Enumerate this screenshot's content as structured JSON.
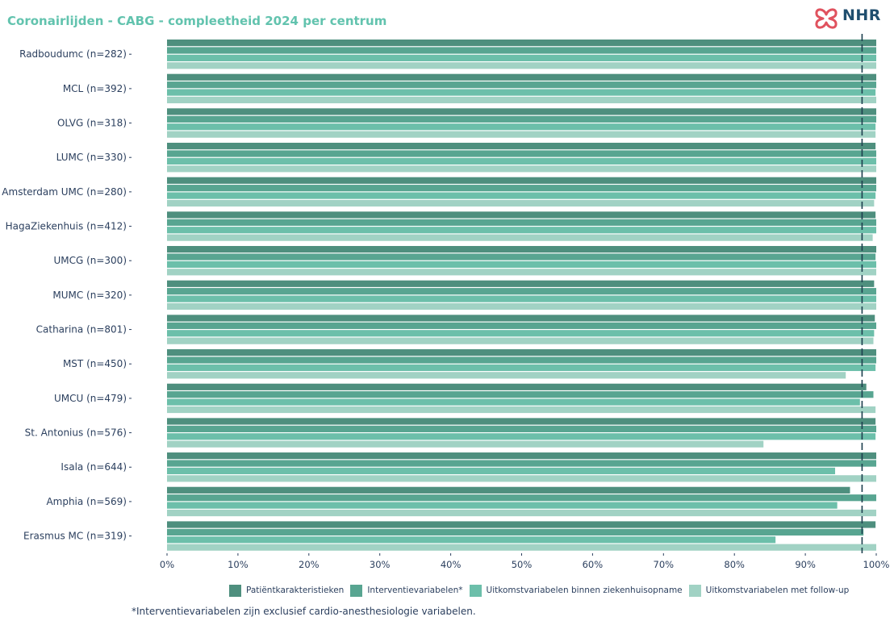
{
  "title": "Coronairlijden - CABG -  compleetheid 2024 per centrum",
  "logo": {
    "text": "NHR",
    "icon": "nhr-logo-icon"
  },
  "footnote": "*Interventievariabelen zijn exclusief cardio-anesthesiologie variabelen.",
  "colors": {
    "accent": "#62c3ae",
    "text": "#2b3f5e",
    "series": [
      "#4e8f7e",
      "#58a591",
      "#6cbfaa",
      "#a1d2c4"
    ],
    "reference_line": "#1d3f4e"
  },
  "chart_data": {
    "type": "bar",
    "orientation": "horizontal",
    "title": "Coronairlijden - CABG -  compleetheid 2024 per centrum",
    "categories": [
      "Radboudumc (n=282)",
      "MCL (n=392)",
      "OLVG (n=318)",
      "LUMC (n=330)",
      "Amsterdam UMC (n=280)",
      "HagaZiekenhuis (n=412)",
      "UMCG (n=300)",
      "MUMC (n=320)",
      "Catharina (n=801)",
      "MST (n=450)",
      "UMCU (n=479)",
      "St. Antonius (n=576)",
      "Isala (n=644)",
      "Amphia (n=569)",
      "Erasmus MC (n=319)"
    ],
    "series": [
      {
        "name": "Patiëntkarakteristieken",
        "values": [
          100,
          100,
          100,
          99.9,
          100,
          99.9,
          100,
          99.7,
          99.8,
          100,
          98.6,
          99.9,
          100,
          96.3,
          99.9
        ]
      },
      {
        "name": "Interventievariabelen*",
        "values": [
          100,
          100,
          100,
          100,
          100,
          100,
          99.9,
          100,
          100,
          100,
          99.6,
          100,
          100,
          100,
          98.2
        ]
      },
      {
        "name": "Uitkomstvariabelen binnen ziekenhuisopname",
        "values": [
          100,
          99.9,
          99.9,
          100,
          99.9,
          100,
          100,
          100,
          99.7,
          99.9,
          97.7,
          99.9,
          94.2,
          94.5,
          85.8
        ]
      },
      {
        "name": "Uitkomstvariabelen met follow-up",
        "values": [
          100,
          100,
          99.9,
          100,
          99.7,
          99.5,
          100,
          100,
          99.6,
          95.7,
          99.9,
          84.1,
          100,
          100,
          100
        ]
      }
    ],
    "x_ticks": [
      "0%",
      "10%",
      "20%",
      "30%",
      "40%",
      "50%",
      "60%",
      "70%",
      "80%",
      "90%",
      "100%"
    ],
    "xlim": [
      0,
      100
    ],
    "reference_line": 98,
    "grid": false,
    "legend_position": "bottom"
  }
}
